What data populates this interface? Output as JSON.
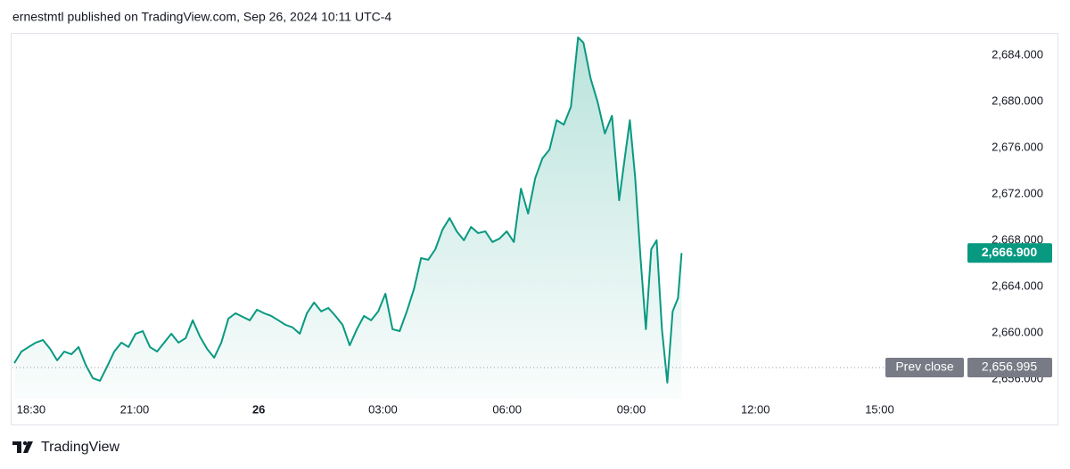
{
  "chart_data": {
    "type": "area",
    "title": "ernestmtl published on TradingView.com, Sep 26, 2024 10:11 UTC-4",
    "footer": "TradingView",
    "color": "#089981",
    "x": [
      18.095,
      18.267,
      18.44,
      18.612,
      18.785,
      18.957,
      19.129,
      19.302,
      19.474,
      19.647,
      19.819,
      19.991,
      20.164,
      20.336,
      20.509,
      20.681,
      20.853,
      21.026,
      21.198,
      21.371,
      21.543,
      21.715,
      21.888,
      22.06,
      22.233,
      22.405,
      22.577,
      22.75,
      22.922,
      23.095,
      23.267,
      23.439,
      23.612,
      23.784,
      23.957,
      24.129,
      24.301,
      24.474,
      24.646,
      24.819,
      24.991,
      25.163,
      25.336,
      25.508,
      25.681,
      25.853,
      26.025,
      26.198,
      26.37,
      26.543,
      26.715,
      26.887,
      27.06,
      27.232,
      27.405,
      27.577,
      27.749,
      27.922,
      28.094,
      28.267,
      28.439,
      28.611,
      28.784,
      28.956,
      29.129,
      29.301,
      29.473,
      29.646,
      29.818,
      29.991,
      30.163,
      30.335,
      30.508,
      30.68,
      30.853,
      31.025,
      31.197,
      31.37,
      31.542,
      31.715,
      31.845,
      32.017,
      32.19,
      32.362,
      32.534,
      32.707,
      32.836,
      32.966,
      33.095,
      33.224,
      33.353,
      33.483,
      33.612,
      33.741,
      33.871,
      34.0,
      34.129,
      34.216
    ],
    "values": [
      2657.38,
      2658.38,
      2658.77,
      2659.15,
      2659.38,
      2658.62,
      2657.62,
      2658.38,
      2658.15,
      2658.77,
      2657.23,
      2656.08,
      2655.85,
      2657.08,
      2658.38,
      2659.15,
      2658.77,
      2659.92,
      2660.15,
      2658.77,
      2658.38,
      2659.15,
      2659.92,
      2659.15,
      2659.54,
      2661.08,
      2659.69,
      2658.62,
      2657.85,
      2659.15,
      2661.23,
      2661.69,
      2661.38,
      2661.08,
      2662.0,
      2661.69,
      2661.46,
      2661.08,
      2660.69,
      2660.46,
      2659.92,
      2661.69,
      2662.62,
      2661.85,
      2662.15,
      2661.46,
      2660.69,
      2658.92,
      2660.31,
      2661.46,
      2661.08,
      2661.85,
      2663.38,
      2660.31,
      2660.15,
      2661.85,
      2663.77,
      2666.46,
      2666.31,
      2667.23,
      2668.92,
      2669.92,
      2668.77,
      2668.0,
      2669.15,
      2668.62,
      2668.77,
      2667.85,
      2668.15,
      2668.77,
      2667.85,
      2672.46,
      2670.31,
      2673.38,
      2675.08,
      2675.85,
      2678.38,
      2678.0,
      2679.54,
      2685.54,
      2685.08,
      2682.0,
      2679.92,
      2677.23,
      2678.77,
      2671.46,
      2674.92,
      2678.38,
      2673.38,
      2666.46,
      2660.31,
      2667.23,
      2668.0,
      2660.31,
      2655.69,
      2661.85,
      2663.0,
      2666.9
    ],
    "xlim": [
      18.05,
      40.95
    ],
    "xticks": [
      {
        "value": 18.5,
        "label": "18:30"
      },
      {
        "value": 21,
        "label": "21:00"
      },
      {
        "value": 24,
        "label": "26"
      },
      {
        "value": 27,
        "label": "03:00"
      },
      {
        "value": 30,
        "label": "06:00"
      },
      {
        "value": 33,
        "label": "09:00"
      },
      {
        "value": 36,
        "label": "12:00"
      },
      {
        "value": 39,
        "label": "15:00"
      }
    ],
    "ylim": [
      2654.15,
      2685.85
    ],
    "yticks": [
      {
        "value": 2656,
        "label": "2,656.000"
      },
      {
        "value": 2660,
        "label": "2,660.000"
      },
      {
        "value": 2664,
        "label": "2,664.000"
      },
      {
        "value": 2668,
        "label": "2,668.000"
      },
      {
        "value": 2672,
        "label": "2,672.000"
      },
      {
        "value": 2676,
        "label": "2,676.000"
      },
      {
        "value": 2680,
        "label": "2,680.000"
      },
      {
        "value": 2684,
        "label": "2,684.000"
      }
    ],
    "last_price": {
      "value": 2666.9,
      "label": "2,666.900"
    },
    "prev_close": {
      "name": "Prev close",
      "value": 2656.995,
      "label": "2,656.995"
    }
  }
}
